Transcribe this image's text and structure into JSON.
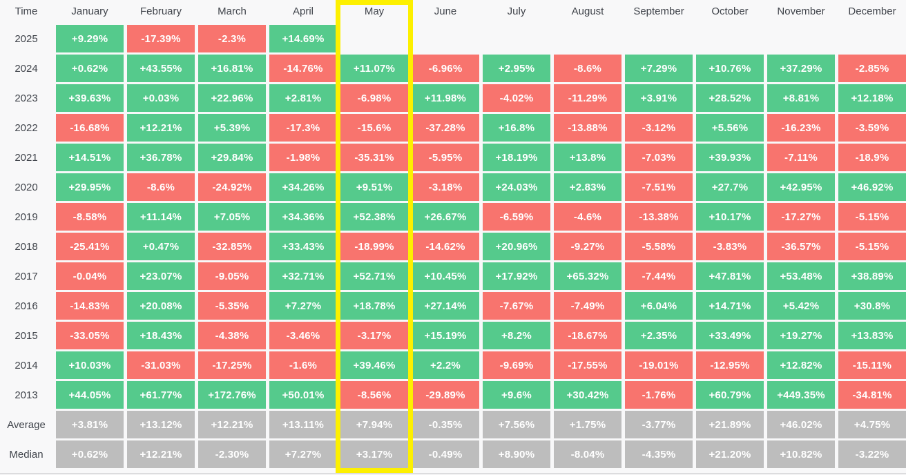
{
  "colors": {
    "positive": "#55ca8c",
    "negative": "#f8746e",
    "stat": "#bdbdbd",
    "highlight": "#fdf000",
    "page_bg": "#f8f8f9",
    "label_text": "#40444b",
    "cell_text": "#ffffff",
    "bottom_rule": "#dcdcde"
  },
  "chart_data": {
    "type": "heatmap",
    "title": "Monthly performance heatmap by year",
    "corner_label": "Time",
    "columns": [
      "January",
      "February",
      "March",
      "April",
      "May",
      "June",
      "July",
      "August",
      "September",
      "October",
      "November",
      "December"
    ],
    "highlighted_column": "May",
    "legend": "green = positive monthly return, red = negative monthly return, gray = Average/Median statistic rows, blank = no data",
    "rows": [
      {
        "label": "2025",
        "kind": "year",
        "values": [
          "+9.29%",
          "-17.39%",
          "-2.3%",
          "+14.69%",
          "",
          "",
          "",
          "",
          "",
          "",
          "",
          ""
        ]
      },
      {
        "label": "2024",
        "kind": "year",
        "values": [
          "+0.62%",
          "+43.55%",
          "+16.81%",
          "-14.76%",
          "+11.07%",
          "-6.96%",
          "+2.95%",
          "-8.6%",
          "+7.29%",
          "+10.76%",
          "+37.29%",
          "-2.85%"
        ]
      },
      {
        "label": "2023",
        "kind": "year",
        "values": [
          "+39.63%",
          "+0.03%",
          "+22.96%",
          "+2.81%",
          "-6.98%",
          "+11.98%",
          "-4.02%",
          "-11.29%",
          "+3.91%",
          "+28.52%",
          "+8.81%",
          "+12.18%"
        ]
      },
      {
        "label": "2022",
        "kind": "year",
        "values": [
          "-16.68%",
          "+12.21%",
          "+5.39%",
          "-17.3%",
          "-15.6%",
          "-37.28%",
          "+16.8%",
          "-13.88%",
          "-3.12%",
          "+5.56%",
          "-16.23%",
          "-3.59%"
        ]
      },
      {
        "label": "2021",
        "kind": "year",
        "values": [
          "+14.51%",
          "+36.78%",
          "+29.84%",
          "-1.98%",
          "-35.31%",
          "-5.95%",
          "+18.19%",
          "+13.8%",
          "-7.03%",
          "+39.93%",
          "-7.11%",
          "-18.9%"
        ]
      },
      {
        "label": "2020",
        "kind": "year",
        "values": [
          "+29.95%",
          "-8.6%",
          "-24.92%",
          "+34.26%",
          "+9.51%",
          "-3.18%",
          "+24.03%",
          "+2.83%",
          "-7.51%",
          "+27.7%",
          "+42.95%",
          "+46.92%"
        ]
      },
      {
        "label": "2019",
        "kind": "year",
        "values": [
          "-8.58%",
          "+11.14%",
          "+7.05%",
          "+34.36%",
          "+52.38%",
          "+26.67%",
          "-6.59%",
          "-4.6%",
          "-13.38%",
          "+10.17%",
          "-17.27%",
          "-5.15%"
        ]
      },
      {
        "label": "2018",
        "kind": "year",
        "values": [
          "-25.41%",
          "+0.47%",
          "-32.85%",
          "+33.43%",
          "-18.99%",
          "-14.62%",
          "+20.96%",
          "-9.27%",
          "-5.58%",
          "-3.83%",
          "-36.57%",
          "-5.15%"
        ]
      },
      {
        "label": "2017",
        "kind": "year",
        "values": [
          "-0.04%",
          "+23.07%",
          "-9.05%",
          "+32.71%",
          "+52.71%",
          "+10.45%",
          "+17.92%",
          "+65.32%",
          "-7.44%",
          "+47.81%",
          "+53.48%",
          "+38.89%"
        ]
      },
      {
        "label": "2016",
        "kind": "year",
        "values": [
          "-14.83%",
          "+20.08%",
          "-5.35%",
          "+7.27%",
          "+18.78%",
          "+27.14%",
          "-7.67%",
          "-7.49%",
          "+6.04%",
          "+14.71%",
          "+5.42%",
          "+30.8%"
        ]
      },
      {
        "label": "2015",
        "kind": "year",
        "values": [
          "-33.05%",
          "+18.43%",
          "-4.38%",
          "-3.46%",
          "-3.17%",
          "+15.19%",
          "+8.2%",
          "-18.67%",
          "+2.35%",
          "+33.49%",
          "+19.27%",
          "+13.83%"
        ]
      },
      {
        "label": "2014",
        "kind": "year",
        "values": [
          "+10.03%",
          "-31.03%",
          "-17.25%",
          "-1.6%",
          "+39.46%",
          "+2.2%",
          "-9.69%",
          "-17.55%",
          "-19.01%",
          "-12.95%",
          "+12.82%",
          "-15.11%"
        ]
      },
      {
        "label": "2013",
        "kind": "year",
        "values": [
          "+44.05%",
          "+61.77%",
          "+172.76%",
          "+50.01%",
          "-8.56%",
          "-29.89%",
          "+9.6%",
          "+30.42%",
          "-1.76%",
          "+60.79%",
          "+449.35%",
          "-34.81%"
        ]
      },
      {
        "label": "Average",
        "kind": "stat",
        "values": [
          "+3.81%",
          "+13.12%",
          "+12.21%",
          "+13.11%",
          "+7.94%",
          "-0.35%",
          "+7.56%",
          "+1.75%",
          "-3.77%",
          "+21.89%",
          "+46.02%",
          "+4.75%"
        ]
      },
      {
        "label": "Median",
        "kind": "stat",
        "values": [
          "+0.62%",
          "+12.21%",
          "-2.30%",
          "+7.27%",
          "+3.17%",
          "-0.49%",
          "+8.90%",
          "-8.04%",
          "-4.35%",
          "+21.20%",
          "+10.82%",
          "-3.22%"
        ]
      }
    ]
  }
}
